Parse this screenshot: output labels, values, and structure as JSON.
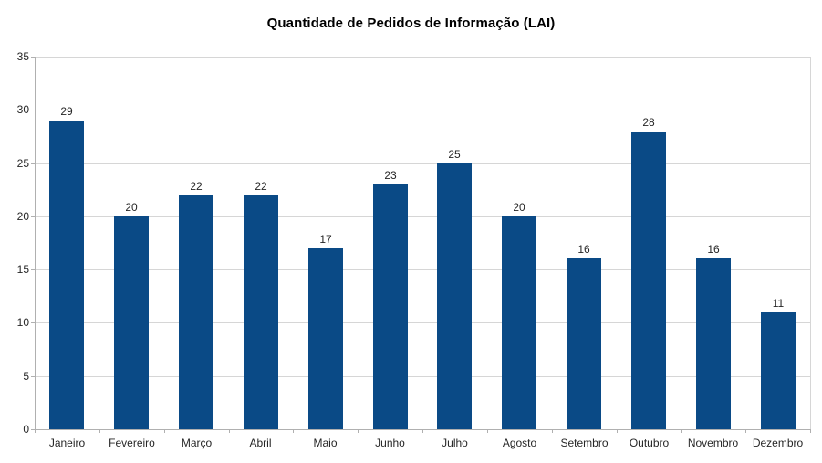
{
  "chart_data": {
    "type": "bar",
    "title": "Quantidade de Pedidos de Informação (LAI)",
    "categories": [
      "Janeiro",
      "Fevereiro",
      "Março",
      "Abril",
      "Maio",
      "Junho",
      "Julho",
      "Agosto",
      "Setembro",
      "Outubro",
      "Novembro",
      "Dezembro"
    ],
    "values": [
      29,
      20,
      22,
      22,
      17,
      23,
      25,
      20,
      16,
      28,
      16,
      11
    ],
    "data_labels": [
      29,
      20,
      22,
      22,
      17,
      23,
      25,
      20,
      16,
      28,
      16,
      11
    ],
    "xlabel": "",
    "ylabel": "",
    "ylim": [
      0,
      35
    ],
    "yticks": [
      0,
      5,
      10,
      15,
      20,
      25,
      30,
      35
    ],
    "grid": "horizontal",
    "legend": "none",
    "bar_color": "#0a4a86"
  }
}
